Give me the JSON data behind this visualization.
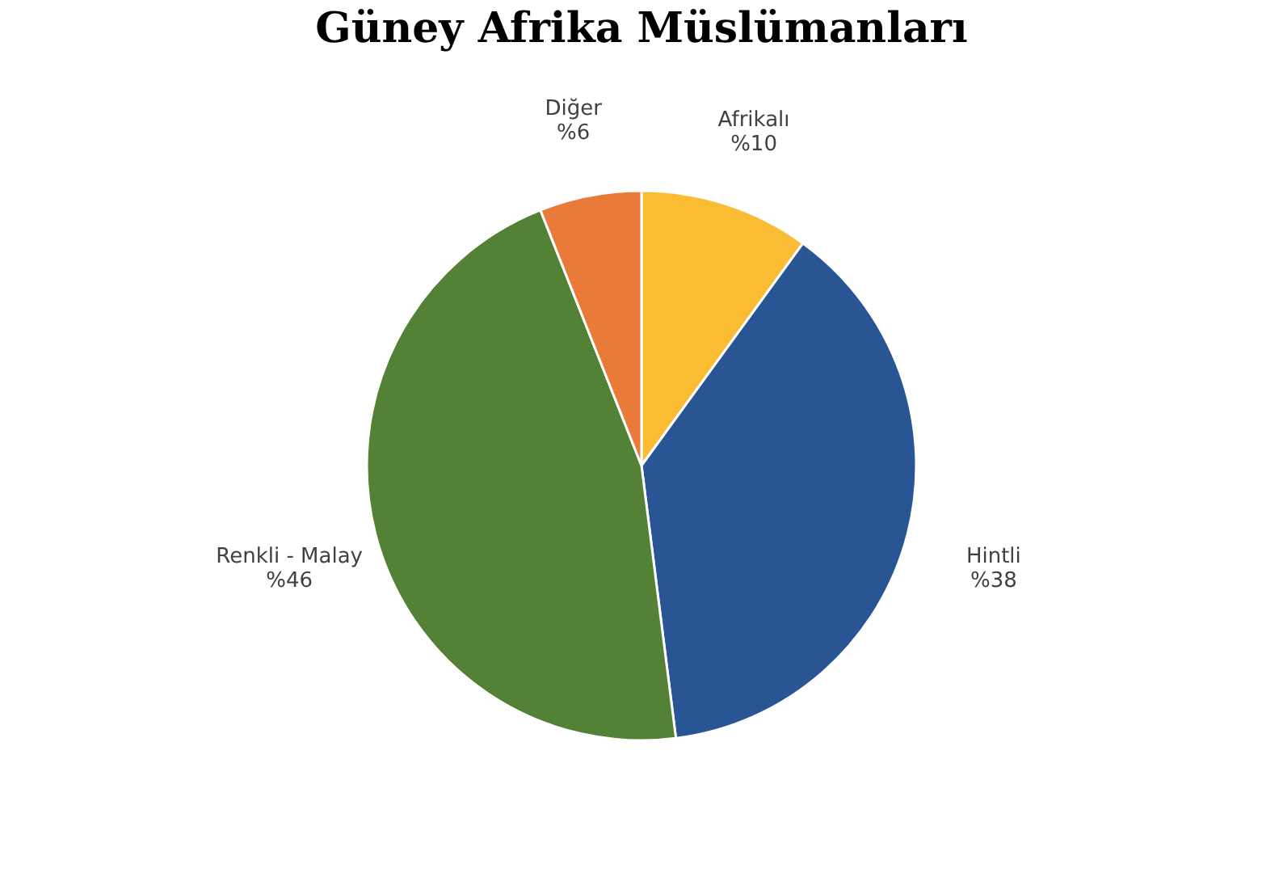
{
  "chart_data": {
    "type": "pie",
    "title": "Güney Afrika Müslümanları",
    "categories": [
      "Afrikalı",
      "Hintli",
      "Renkli - Malay",
      "Diğer"
    ],
    "values": [
      10,
      38,
      46,
      6
    ],
    "value_labels": [
      "%10",
      "%38",
      "%46",
      "%6"
    ],
    "colors": [
      "#f9bc33",
      "#2a5595",
      "#538135",
      "#ea7a3a"
    ],
    "legend": false
  }
}
